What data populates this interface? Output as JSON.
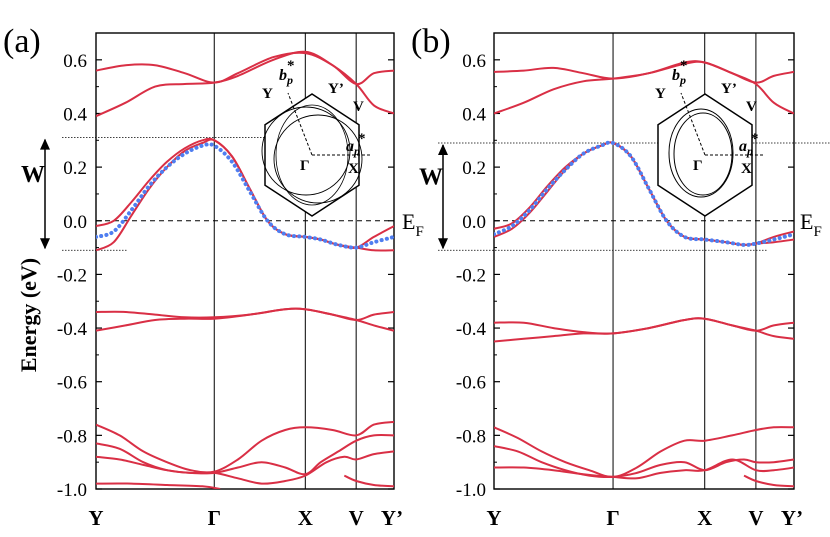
{
  "figure": {
    "y_axis_label": "Energy (eV)",
    "fermi_label": "E",
    "fermi_sub": "F",
    "width_label": "W"
  },
  "chart_data": [
    {
      "type": "line",
      "panel_label": "(a)",
      "ylabel": "Energy (eV)",
      "ylim": [
        -1.0,
        0.7
      ],
      "yticks": [
        0.6,
        0.4,
        0.2,
        0.0,
        -0.2,
        -0.4,
        -0.6,
        -0.8,
        -1.0
      ],
      "ytick_labels": [
        "0.6",
        "0.4",
        "0.2",
        "0.0",
        "-0.2",
        "-0.4",
        "-0.6",
        "-0.8",
        "-1.0"
      ],
      "kpoints": [
        "Y",
        "Γ",
        "X",
        "V",
        "Y’"
      ],
      "kpoint_positions": [
        0,
        1,
        1.77,
        2.2,
        2.52
      ],
      "fermi_level": 0.0,
      "band_width_marker": {
        "top": 0.31,
        "bottom": -0.11
      },
      "inset_labels": {
        "b": "b",
        "b_sub": "p",
        "a": "a",
        "a_sub": "p",
        "star": "*",
        "Y": "Y",
        "Yp": "Y’",
        "V": "V",
        "G": "Γ",
        "X": "X"
      },
      "series": [
        {
          "name": "band-upper-1",
          "color": "#d92f45",
          "x": [
            0,
            0.25,
            0.5,
            0.75,
            1,
            1.2,
            1.5,
            1.77,
            2,
            2.2,
            2.35,
            2.52
          ],
          "y": [
            0.56,
            0.58,
            0.58,
            0.55,
            0.515,
            0.55,
            0.61,
            0.625,
            0.58,
            0.51,
            0.55,
            0.56
          ]
        },
        {
          "name": "band-upper-2",
          "color": "#d92f45",
          "x": [
            0,
            0.25,
            0.5,
            0.75,
            1,
            1.2,
            1.5,
            1.77,
            2,
            2.2,
            2.35,
            2.52
          ],
          "y": [
            0.39,
            0.44,
            0.5,
            0.51,
            0.515,
            0.54,
            0.6,
            0.63,
            0.58,
            0.51,
            0.43,
            0.4
          ]
        },
        {
          "name": "band-fermi-1",
          "color": "#d92f45",
          "x": [
            0,
            0.15,
            0.3,
            0.45,
            0.6,
            0.75,
            0.9,
            1,
            1.15,
            1.3,
            1.45,
            1.6,
            1.77,
            1.9,
            2.05,
            2.2,
            2.35,
            2.52
          ],
          "y": [
            -0.02,
            0.0,
            0.07,
            0.15,
            0.22,
            0.27,
            0.3,
            0.3,
            0.24,
            0.12,
            0.0,
            -0.05,
            -0.06,
            -0.07,
            -0.09,
            -0.1,
            -0.06,
            -0.02
          ]
        },
        {
          "name": "band-fermi-2",
          "color": "#d92f45",
          "x": [
            0,
            0.15,
            0.3,
            0.45,
            0.6,
            0.75,
            0.9,
            1,
            1.15,
            1.3,
            1.45,
            1.6,
            1.77,
            1.9,
            2.05,
            2.2,
            2.35,
            2.52
          ],
          "y": [
            -0.11,
            -0.08,
            0.02,
            0.12,
            0.2,
            0.26,
            0.29,
            0.3,
            0.24,
            0.12,
            0.0,
            -0.05,
            -0.06,
            -0.07,
            -0.09,
            -0.1,
            -0.11,
            -0.11
          ]
        },
        {
          "name": "band-fermi-fit",
          "color": "#4f7ef0",
          "dotted": true,
          "x": [
            0,
            0.15,
            0.3,
            0.45,
            0.6,
            0.75,
            0.9,
            1,
            1.15,
            1.3,
            1.45,
            1.6,
            1.77,
            1.9,
            2.05,
            2.2,
            2.35,
            2.52
          ],
          "y": [
            -0.06,
            -0.04,
            0.04,
            0.13,
            0.2,
            0.25,
            0.28,
            0.28,
            0.22,
            0.11,
            0.0,
            -0.05,
            -0.06,
            -0.07,
            -0.09,
            -0.1,
            -0.08,
            -0.06
          ]
        },
        {
          "name": "band-mid-1",
          "color": "#d92f45",
          "x": [
            0,
            0.25,
            0.5,
            0.75,
            1,
            1.3,
            1.6,
            1.77,
            2,
            2.2,
            2.35,
            2.52
          ],
          "y": [
            -0.34,
            -0.34,
            -0.35,
            -0.36,
            -0.36,
            -0.35,
            -0.33,
            -0.33,
            -0.35,
            -0.37,
            -0.35,
            -0.34
          ]
        },
        {
          "name": "band-mid-2",
          "color": "#d92f45",
          "x": [
            0,
            0.25,
            0.5,
            0.75,
            1,
            1.3,
            1.6,
            1.77,
            2,
            2.2,
            2.35,
            2.52
          ],
          "y": [
            -0.41,
            -0.39,
            -0.37,
            -0.365,
            -0.365,
            -0.35,
            -0.33,
            -0.33,
            -0.35,
            -0.37,
            -0.39,
            -0.41
          ]
        },
        {
          "name": "band-low-1",
          "color": "#d92f45",
          "x": [
            0,
            0.2,
            0.4,
            0.6,
            0.8,
            1,
            1.2,
            1.4,
            1.6,
            1.77,
            2,
            2.2,
            2.35,
            2.52
          ],
          "y": [
            -0.76,
            -0.8,
            -0.86,
            -0.9,
            -0.93,
            -0.935,
            -0.89,
            -0.82,
            -0.78,
            -0.77,
            -0.78,
            -0.8,
            -0.76,
            -0.75
          ]
        },
        {
          "name": "band-low-2",
          "color": "#d92f45",
          "x": [
            0,
            0.2,
            0.4,
            0.6,
            0.8,
            1,
            1.2,
            1.4,
            1.6,
            1.77,
            1.9,
            2.05,
            2.2,
            2.35,
            2.52
          ],
          "y": [
            -0.88,
            -0.89,
            -0.91,
            -0.93,
            -0.94,
            -0.94,
            -0.92,
            -0.9,
            -0.92,
            -0.945,
            -0.9,
            -0.86,
            -0.82,
            -0.8,
            -0.8
          ]
        },
        {
          "name": "band-low-3",
          "color": "#d92f45",
          "x": [
            0,
            0.2,
            0.4,
            0.6,
            0.8,
            1,
            1.2,
            1.4,
            1.6,
            1.77,
            1.95,
            2.1,
            2.2,
            2.35,
            2.52
          ],
          "y": [
            -0.83,
            -0.85,
            -0.9,
            -0.93,
            -0.94,
            -0.94,
            -0.96,
            -0.98,
            -0.97,
            -0.95,
            -0.9,
            -0.88,
            -0.89,
            -0.87,
            -0.86
          ]
        },
        {
          "name": "band-low-4",
          "color": "#d92f45",
          "x": [
            0,
            0.3,
            0.6,
            0.9,
            1.05
          ],
          "y": [
            -0.98,
            -0.98,
            -0.985,
            -0.99,
            -1.0
          ]
        },
        {
          "name": "band-low-5",
          "color": "#d92f45",
          "x": [
            2.1,
            2.2,
            2.35,
            2.52
          ],
          "y": [
            -0.95,
            -0.97,
            -0.985,
            -0.99
          ]
        }
      ]
    },
    {
      "type": "line",
      "panel_label": "(b)",
      "ylabel": "",
      "ylim": [
        -1.0,
        0.7
      ],
      "yticks": [
        0.6,
        0.4,
        0.2,
        0.0,
        -0.2,
        -0.4,
        -0.6,
        -0.8,
        -1.0
      ],
      "ytick_labels": [
        "0.6",
        "0.4",
        "0.2",
        "0.0",
        "-0.2",
        "-0.4",
        "-0.6",
        "-0.8",
        "-1.0"
      ],
      "kpoints": [
        "Y",
        "Γ",
        "X",
        "V",
        "Y’"
      ],
      "kpoint_positions": [
        0,
        1,
        1.77,
        2.2,
        2.52
      ],
      "fermi_level": 0.0,
      "band_width_marker": {
        "top": 0.29,
        "bottom": -0.11
      },
      "inset_labels": {
        "b": "b",
        "b_sub": "p",
        "a": "a",
        "a_sub": "p",
        "star": "*",
        "Y": "Y",
        "Yp": "Y’",
        "V": "V",
        "G": "Γ",
        "X": "X"
      },
      "series": [
        {
          "name": "band-upper-1",
          "color": "#d92f45",
          "x": [
            0,
            0.25,
            0.5,
            0.75,
            1,
            1.3,
            1.6,
            1.77,
            2,
            2.2,
            2.35,
            2.52
          ],
          "y": [
            0.555,
            0.56,
            0.57,
            0.55,
            0.53,
            0.55,
            0.59,
            0.59,
            0.55,
            0.515,
            0.54,
            0.555
          ]
        },
        {
          "name": "band-upper-2",
          "color": "#d92f45",
          "x": [
            0,
            0.25,
            0.5,
            0.75,
            1,
            1.3,
            1.6,
            1.77,
            2,
            2.2,
            2.35,
            2.52
          ],
          "y": [
            0.4,
            0.44,
            0.49,
            0.52,
            0.53,
            0.55,
            0.585,
            0.59,
            0.55,
            0.51,
            0.44,
            0.4
          ]
        },
        {
          "name": "band-fermi-1",
          "color": "#d92f45",
          "x": [
            0,
            0.15,
            0.3,
            0.45,
            0.6,
            0.75,
            0.9,
            1,
            1.15,
            1.3,
            1.45,
            1.6,
            1.77,
            1.95,
            2.1,
            2.2,
            2.35,
            2.52
          ],
          "y": [
            -0.03,
            -0.01,
            0.05,
            0.13,
            0.2,
            0.25,
            0.28,
            0.29,
            0.24,
            0.12,
            0.0,
            -0.06,
            -0.07,
            -0.08,
            -0.09,
            -0.085,
            -0.06,
            -0.04
          ]
        },
        {
          "name": "band-fermi-2",
          "color": "#d92f45",
          "x": [
            0,
            0.15,
            0.3,
            0.45,
            0.6,
            0.75,
            0.9,
            1,
            1.15,
            1.3,
            1.45,
            1.6,
            1.77,
            1.95,
            2.1,
            2.2,
            2.35,
            2.52
          ],
          "y": [
            -0.06,
            -0.03,
            0.03,
            0.11,
            0.19,
            0.25,
            0.28,
            0.29,
            0.24,
            0.12,
            0.0,
            -0.06,
            -0.07,
            -0.08,
            -0.09,
            -0.085,
            -0.08,
            -0.07
          ]
        },
        {
          "name": "band-fermi-fit",
          "color": "#4f7ef0",
          "dotted": true,
          "x": [
            0,
            0.15,
            0.3,
            0.45,
            0.6,
            0.75,
            0.9,
            1,
            1.15,
            1.3,
            1.45,
            1.6,
            1.77,
            1.95,
            2.1,
            2.2,
            2.35,
            2.52
          ],
          "y": [
            -0.05,
            -0.02,
            0.04,
            0.12,
            0.19,
            0.25,
            0.28,
            0.29,
            0.24,
            0.12,
            0.0,
            -0.06,
            -0.07,
            -0.08,
            -0.09,
            -0.085,
            -0.07,
            -0.05
          ]
        },
        {
          "name": "band-mid-1",
          "color": "#d92f45",
          "x": [
            0,
            0.25,
            0.5,
            0.75,
            1,
            1.3,
            1.6,
            1.77,
            2,
            2.2,
            2.35,
            2.52
          ],
          "y": [
            -0.38,
            -0.38,
            -0.4,
            -0.415,
            -0.42,
            -0.4,
            -0.37,
            -0.365,
            -0.39,
            -0.41,
            -0.39,
            -0.38
          ]
        },
        {
          "name": "band-mid-2",
          "color": "#d92f45",
          "x": [
            0,
            0.25,
            0.5,
            0.75,
            1,
            1.3,
            1.6,
            1.77,
            2,
            2.2,
            2.35,
            2.52
          ],
          "y": [
            -0.45,
            -0.44,
            -0.43,
            -0.42,
            -0.42,
            -0.4,
            -0.37,
            -0.365,
            -0.39,
            -0.41,
            -0.43,
            -0.44
          ]
        },
        {
          "name": "band-low-1",
          "color": "#d92f45",
          "x": [
            0,
            0.2,
            0.4,
            0.6,
            0.8,
            1,
            1.2,
            1.4,
            1.6,
            1.77,
            2,
            2.2,
            2.35,
            2.52
          ],
          "y": [
            -0.77,
            -0.81,
            -0.86,
            -0.9,
            -0.93,
            -0.955,
            -0.92,
            -0.86,
            -0.82,
            -0.82,
            -0.8,
            -0.78,
            -0.77,
            -0.77
          ]
        },
        {
          "name": "band-low-2",
          "color": "#d92f45",
          "x": [
            0,
            0.2,
            0.4,
            0.6,
            0.8,
            1,
            1.2,
            1.4,
            1.6,
            1.77,
            1.95,
            2.1,
            2.2,
            2.35,
            2.52
          ],
          "y": [
            -0.84,
            -0.86,
            -0.9,
            -0.93,
            -0.95,
            -0.955,
            -0.94,
            -0.91,
            -0.9,
            -0.93,
            -0.9,
            -0.89,
            -0.9,
            -0.9,
            -0.89
          ]
        },
        {
          "name": "band-low-3",
          "color": "#d92f45",
          "x": [
            0,
            0.25,
            0.5,
            0.75,
            1,
            1.2,
            1.4,
            1.6,
            1.77,
            2,
            2.2,
            2.35,
            2.52
          ],
          "y": [
            -0.92,
            -0.92,
            -0.93,
            -0.945,
            -0.955,
            -0.96,
            -0.94,
            -0.93,
            -0.93,
            -0.89,
            -0.93,
            -0.93,
            -0.92
          ]
        },
        {
          "name": "band-low-5",
          "color": "#d92f45",
          "x": [
            2.1,
            2.2,
            2.35,
            2.52
          ],
          "y": [
            -0.95,
            -0.97,
            -0.985,
            -0.99
          ]
        }
      ]
    }
  ]
}
